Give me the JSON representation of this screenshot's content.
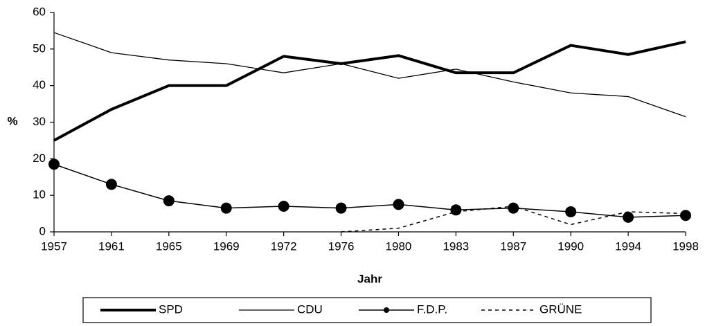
{
  "chart_data": {
    "type": "line",
    "x_label": "Jahr",
    "y_label": "%",
    "categories": [
      "1957",
      "1961",
      "1965",
      "1969",
      "1972",
      "1976",
      "1980",
      "1983",
      "1987",
      "1990",
      "1994",
      "1998"
    ],
    "ylim": [
      0,
      60
    ],
    "yticks": [
      0,
      10,
      20,
      30,
      40,
      50,
      60
    ],
    "grid": false,
    "series": [
      {
        "name": "SPD",
        "color": "#000000",
        "line_width": 4,
        "values": [
          25,
          33.5,
          40,
          40,
          48,
          46,
          48.2,
          43.5,
          43.5,
          51,
          48.5,
          52
        ]
      },
      {
        "name": "CDU",
        "color": "#000000",
        "line_width": 1.3,
        "values": [
          54.5,
          49,
          47,
          46,
          43.5,
          46,
          42,
          44.5,
          41,
          38,
          37,
          31.5
        ]
      },
      {
        "name": "F.D.P.",
        "color": "#000000",
        "line_width": 1.5,
        "marker": "circle",
        "values": [
          18.5,
          13,
          8.5,
          6.5,
          7,
          6.5,
          7.5,
          6,
          6.5,
          5.5,
          4,
          4.5
        ]
      },
      {
        "name": "GRÜNE",
        "color": "#000000",
        "line_width": 1.5,
        "dashed": true,
        "values": [
          null,
          null,
          null,
          null,
          null,
          0,
          1,
          5.5,
          7,
          2,
          5.5,
          5
        ]
      }
    ]
  }
}
